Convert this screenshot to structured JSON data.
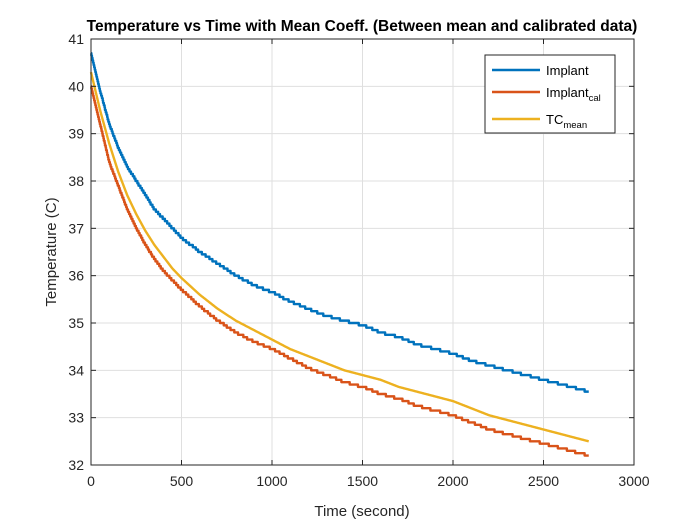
{
  "chart_data": {
    "type": "line",
    "title": "Temperature vs Time with Mean Coeff. (Between mean and calibrated data)",
    "xlabel": "Time (second)",
    "ylabel": "Temperature (C)",
    "xlim": [
      0,
      3000
    ],
    "ylim": [
      32,
      41
    ],
    "xticks": [
      0,
      500,
      1000,
      1500,
      2000,
      2500,
      3000
    ],
    "yticks": [
      32,
      33,
      34,
      35,
      36,
      37,
      38,
      39,
      40,
      41
    ],
    "grid": true,
    "legend_position": "top-right",
    "series": [
      {
        "name": "Implant",
        "legend_main": "Implant",
        "legend_sub": "",
        "color": "#0072BD",
        "style": "stepped",
        "x": [
          0,
          25,
          50,
          100,
          150,
          200,
          250,
          300,
          350,
          400,
          450,
          500,
          600,
          700,
          800,
          900,
          1000,
          1100,
          1200,
          1300,
          1400,
          1500,
          1600,
          1700,
          1800,
          1900,
          2000,
          2100,
          2200,
          2300,
          2400,
          2500,
          2600,
          2700,
          2750
        ],
        "y": [
          40.7,
          40.3,
          39.9,
          39.2,
          38.7,
          38.3,
          38.0,
          37.7,
          37.4,
          37.2,
          37.0,
          36.8,
          36.5,
          36.25,
          36.0,
          35.8,
          35.65,
          35.45,
          35.3,
          35.15,
          35.05,
          34.95,
          34.8,
          34.7,
          34.55,
          34.45,
          34.35,
          34.2,
          34.1,
          34.0,
          33.9,
          33.8,
          33.7,
          33.6,
          33.55
        ]
      },
      {
        "name": "Implant_cal",
        "legend_main": "Implant",
        "legend_sub": "cal",
        "color": "#D95319",
        "style": "stepped",
        "x": [
          0,
          25,
          50,
          100,
          150,
          200,
          250,
          300,
          350,
          400,
          450,
          500,
          600,
          700,
          800,
          900,
          1000,
          1100,
          1200,
          1300,
          1400,
          1500,
          1600,
          1700,
          1800,
          1900,
          2000,
          2100,
          2200,
          2300,
          2400,
          2500,
          2600,
          2700,
          2750
        ],
        "y": [
          40.0,
          39.6,
          39.2,
          38.4,
          37.9,
          37.4,
          37.0,
          36.65,
          36.35,
          36.1,
          35.9,
          35.7,
          35.35,
          35.05,
          34.8,
          34.6,
          34.45,
          34.25,
          34.05,
          33.9,
          33.75,
          33.65,
          33.5,
          33.4,
          33.25,
          33.15,
          33.05,
          32.9,
          32.75,
          32.65,
          32.55,
          32.45,
          32.35,
          32.25,
          32.2
        ]
      },
      {
        "name": "TC_mean",
        "legend_main": "TC",
        "legend_sub": "mean",
        "color": "#EDB120",
        "style": "line",
        "x": [
          0,
          25,
          50,
          100,
          150,
          200,
          250,
          300,
          350,
          400,
          450,
          500,
          600,
          700,
          800,
          900,
          1000,
          1100,
          1200,
          1300,
          1400,
          1500,
          1600,
          1700,
          1800,
          1900,
          2000,
          2100,
          2200,
          2300,
          2400,
          2500,
          2600,
          2700,
          2750
        ],
        "y": [
          40.3,
          39.9,
          39.5,
          38.8,
          38.2,
          37.7,
          37.3,
          36.95,
          36.65,
          36.4,
          36.15,
          35.95,
          35.6,
          35.3,
          35.05,
          34.85,
          34.65,
          34.45,
          34.3,
          34.15,
          34.0,
          33.9,
          33.8,
          33.65,
          33.55,
          33.45,
          33.35,
          33.2,
          33.05,
          32.95,
          32.85,
          32.75,
          32.65,
          32.55,
          32.5
        ]
      }
    ]
  }
}
